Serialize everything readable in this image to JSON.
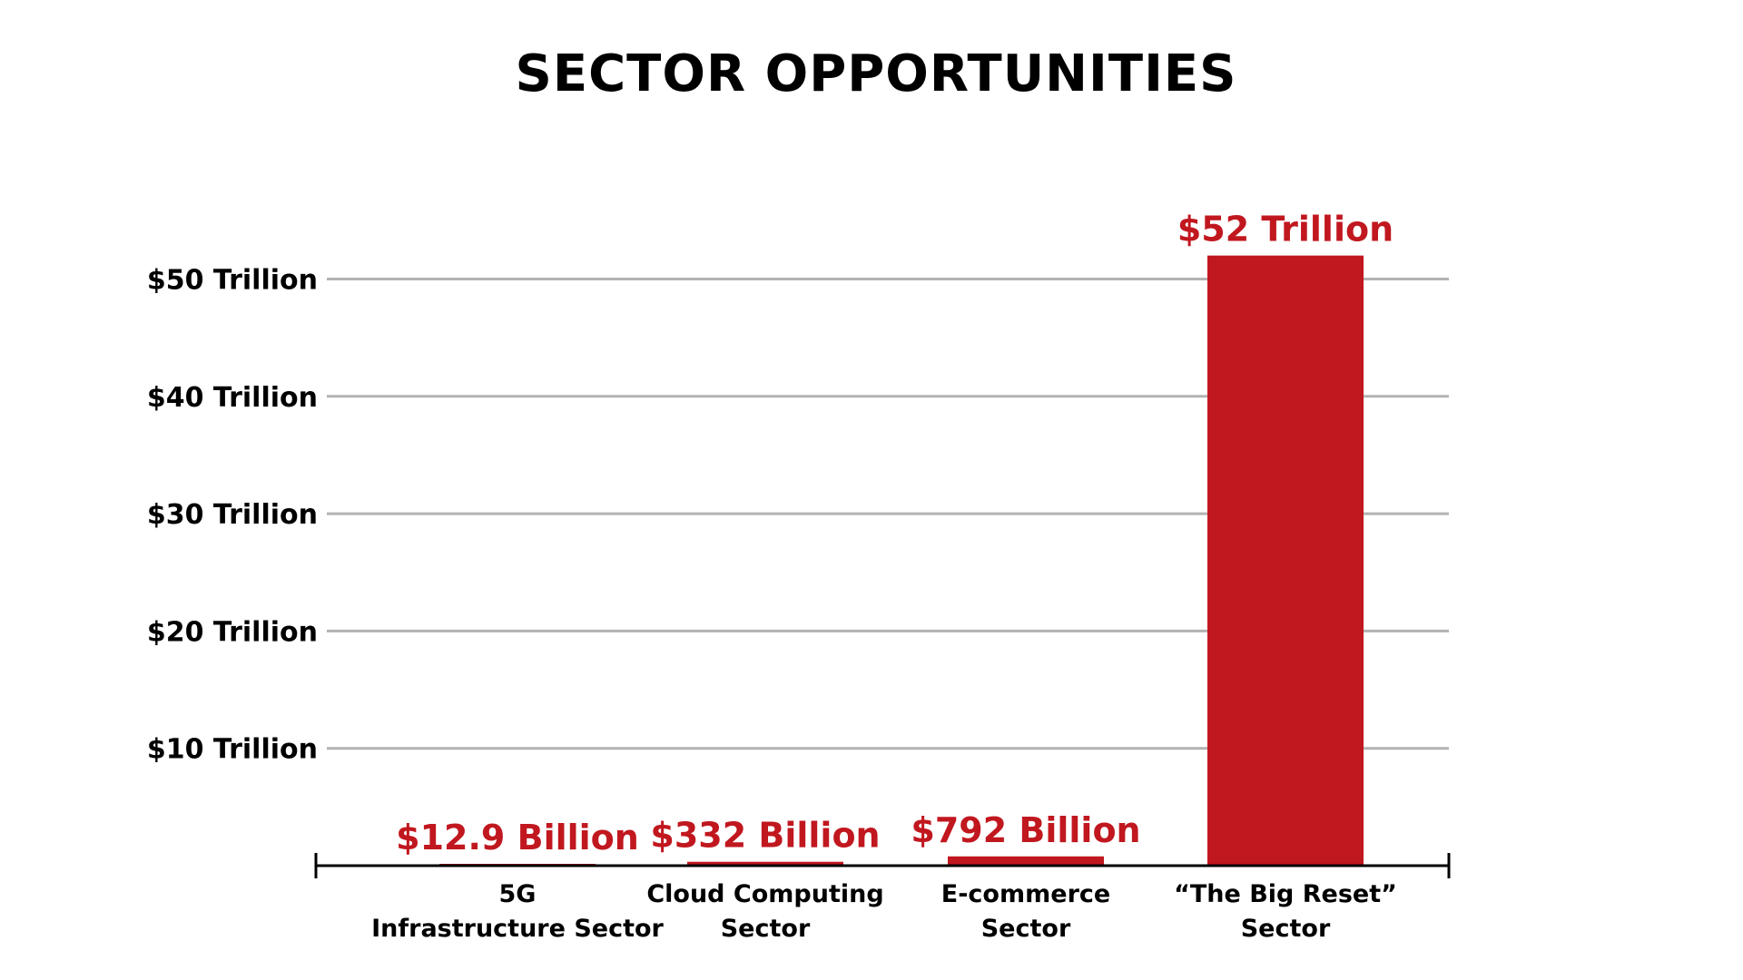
{
  "chart_data": {
    "type": "bar",
    "title": "SECTOR OPPORTUNITIES",
    "xlabel": "",
    "ylabel": "",
    "categories": [
      [
        "5G",
        "Infrastructure Sector"
      ],
      [
        "Cloud Computing",
        "Sector"
      ],
      [
        "E-commerce",
        "Sector"
      ],
      [
        "“The Big Reset”",
        "Sector"
      ]
    ],
    "values": [
      0.0129,
      0.332,
      0.792,
      52
    ],
    "value_unit": "Trillion USD",
    "data_labels": [
      "$12.9 Billion",
      "$332 Billion",
      "$792 Billion",
      "$52 Trillion"
    ],
    "yticks": [
      10,
      20,
      30,
      40,
      50
    ],
    "ytick_labels": [
      "$10 Trillion",
      "$20 Trillion",
      "$30 Trillion",
      "$40 Trillion",
      "$50 Trillion"
    ],
    "ylim": [
      0,
      52
    ],
    "grid": true,
    "legend": "none"
  },
  "colors": {
    "bar": "#c1171f",
    "label": "#c1171f",
    "grid": "#b3b3b3",
    "axis": "#000000",
    "text": "#000000"
  }
}
